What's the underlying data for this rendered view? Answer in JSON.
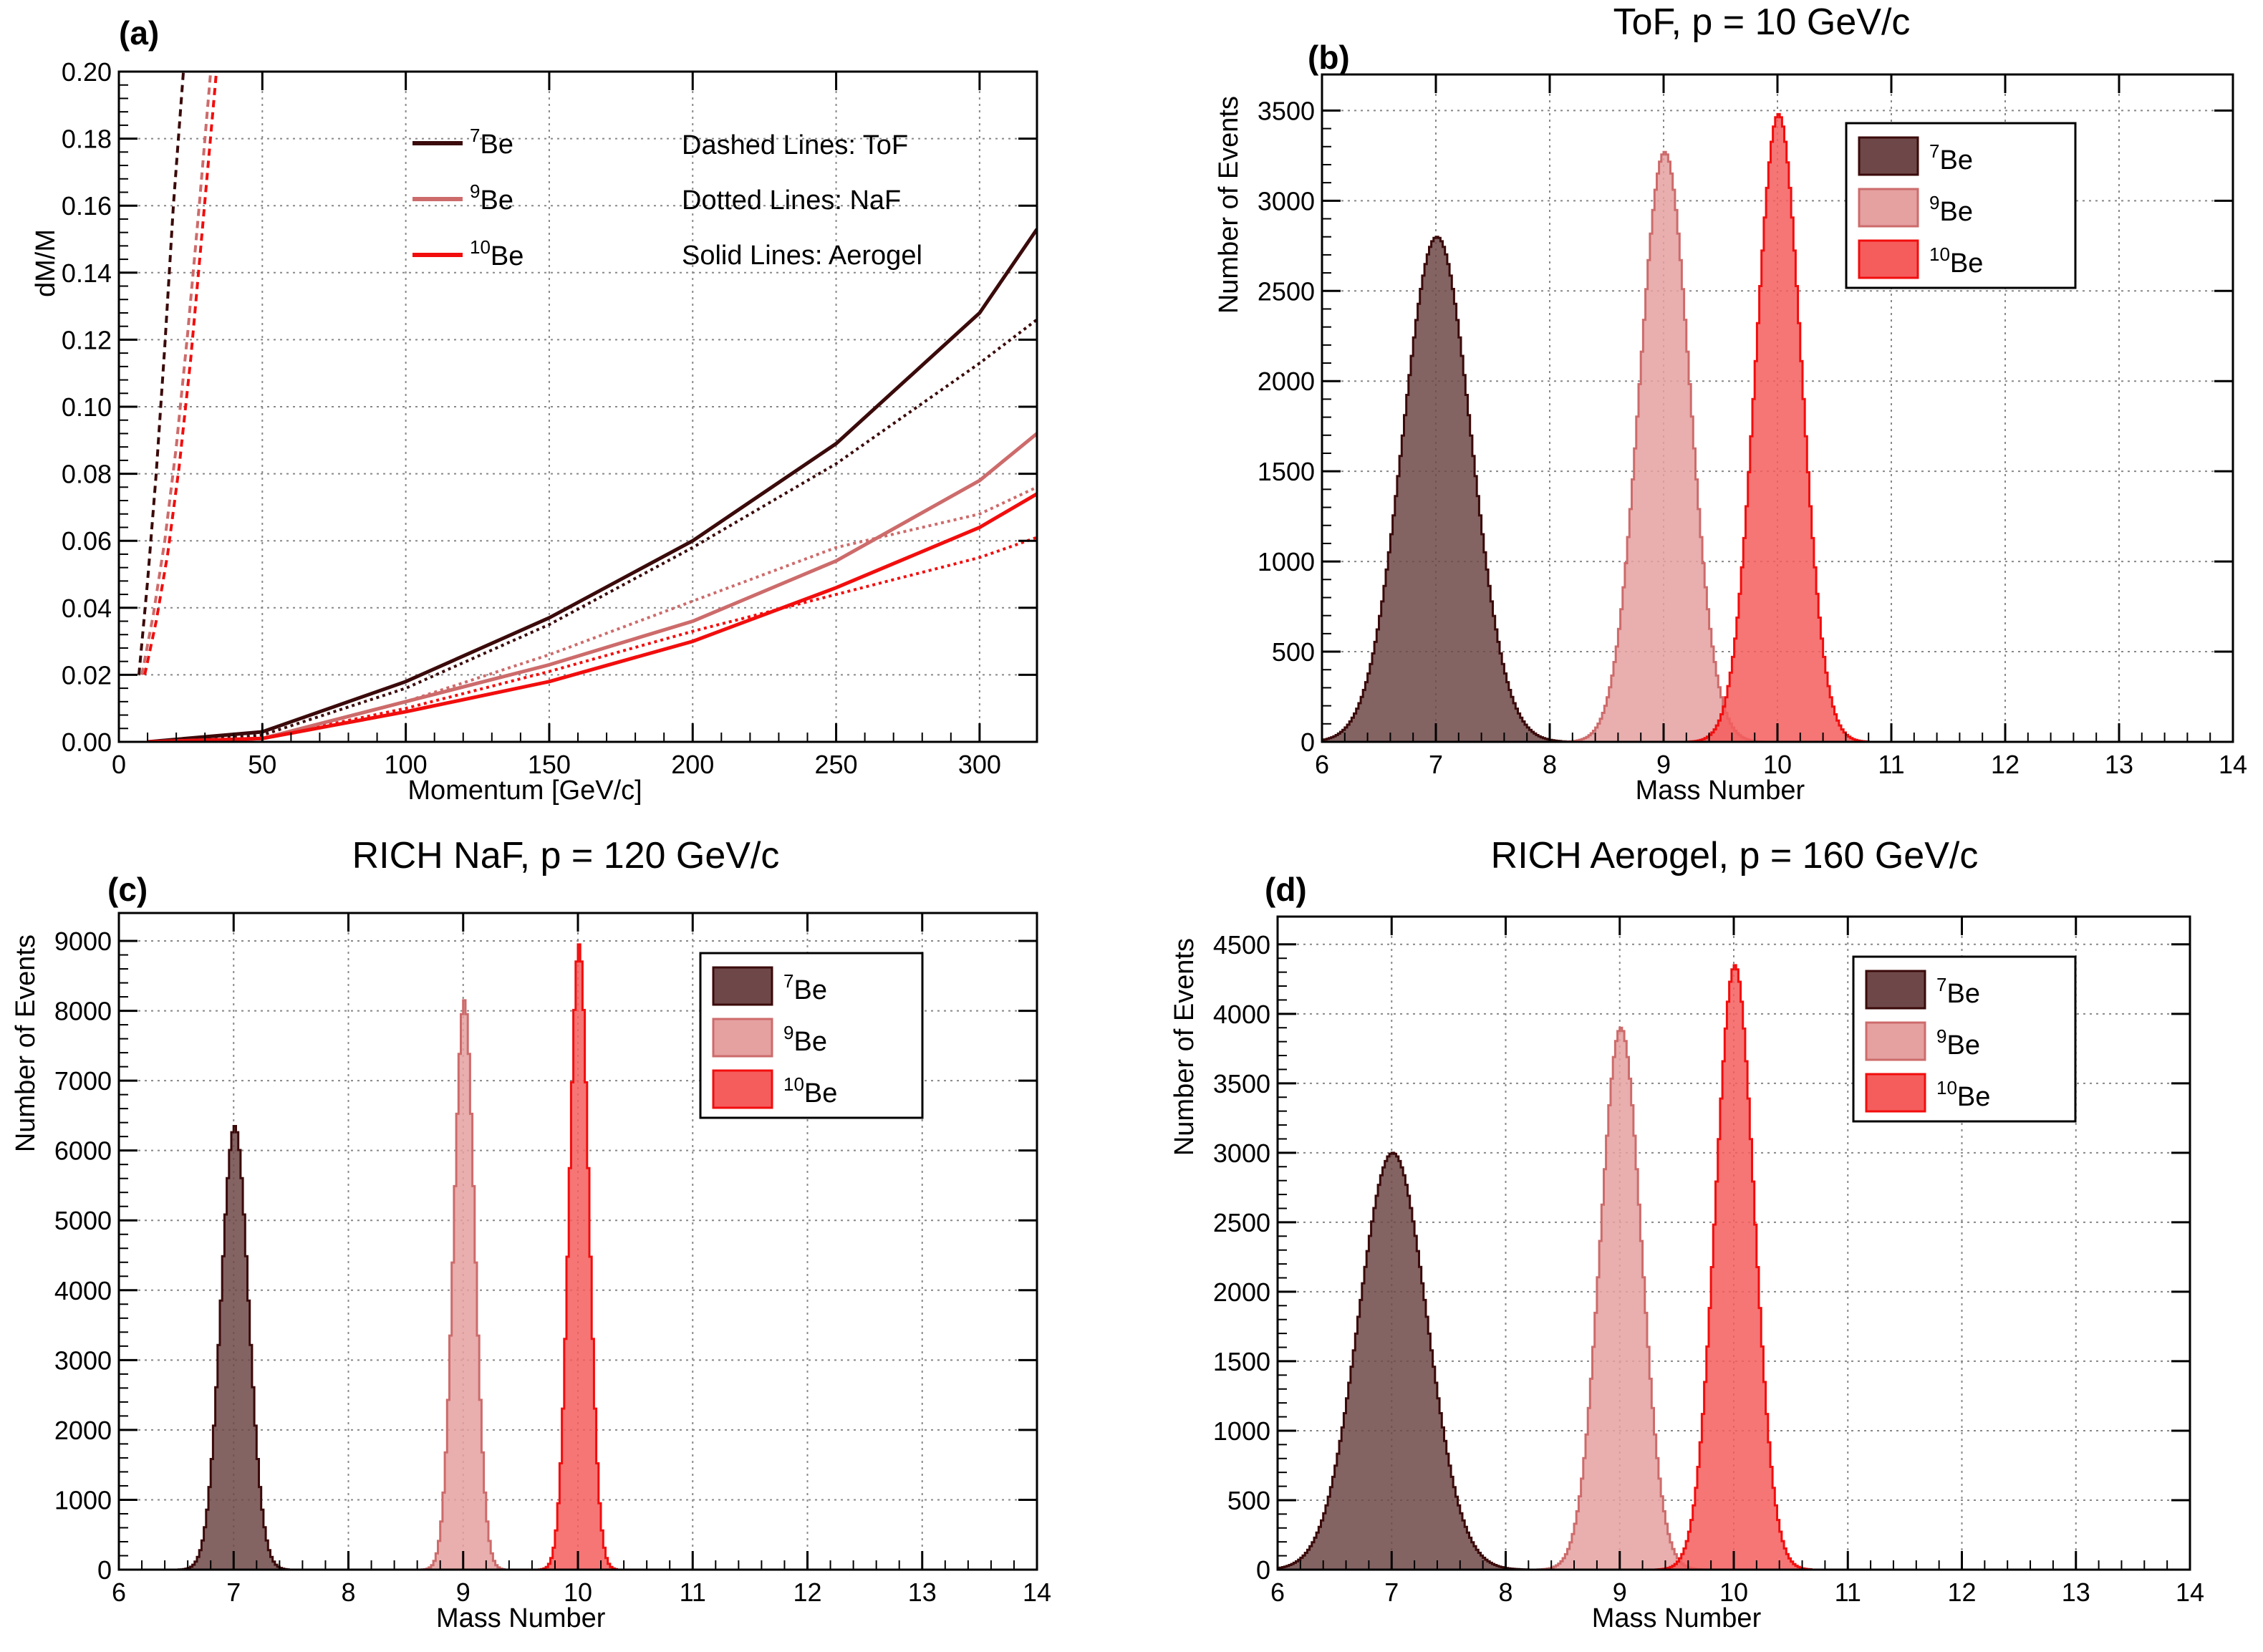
{
  "colors": {
    "be7": "#3b0a0a",
    "be9": "#cd6b6b",
    "be10": "#f20d0d",
    "be7_fill": "#6e4848",
    "be9_fill": "#e5a0a0",
    "be10_fill": "#f55d5d",
    "grid": "#888888"
  },
  "chart_data": [
    {
      "id": "a",
      "type": "line",
      "panel_label": "(a)",
      "title": "",
      "xlabel": "Momentum [GeV/c]",
      "ylabel": "dM/M",
      "xlim": [
        0,
        320
      ],
      "ylim": [
        0,
        0.2
      ],
      "xticks": [
        0,
        50,
        100,
        150,
        200,
        250,
        300
      ],
      "xtick_labels": [
        "0",
        "50",
        "100",
        "150",
        "200",
        "250",
        "300"
      ],
      "yticks": [
        0,
        0.02,
        0.04,
        0.06,
        0.08,
        0.1,
        0.12,
        0.14,
        0.16,
        0.18,
        0.2
      ],
      "ytick_labels": [
        "0.00",
        "0.02",
        "0.04",
        "0.06",
        "0.08",
        "0.10",
        "0.12",
        "0.14",
        "0.16",
        "0.18",
        "0.20"
      ],
      "legend": {
        "position": "top-left",
        "entries": [
          {
            "sup": "7",
            "label": "Be",
            "series": "be7"
          },
          {
            "sup": "9",
            "label": "Be",
            "series": "be9"
          },
          {
            "sup": "10",
            "label": "Be",
            "series": "be10"
          }
        ]
      },
      "notes": [
        "Dashed Lines: ToF",
        "Dotted Lines: NaF",
        "Solid Lines: Aerogel"
      ],
      "series": [
        {
          "name": "7Be ToF",
          "isotope": "be7",
          "detector": "ToF",
          "style": "dashed",
          "x": [
            7,
            10,
            13,
            16,
            19,
            22.5
          ],
          "y": [
            0.02,
            0.048,
            0.08,
            0.118,
            0.16,
            0.2
          ]
        },
        {
          "name": "9Be ToF",
          "isotope": "be9",
          "detector": "ToF",
          "style": "dashed",
          "x": [
            8,
            12,
            16,
            20,
            24,
            28,
            32
          ],
          "y": [
            0.02,
            0.038,
            0.06,
            0.088,
            0.122,
            0.16,
            0.2
          ]
        },
        {
          "name": "10Be ToF",
          "isotope": "be10",
          "detector": "ToF",
          "style": "dashed",
          "x": [
            9,
            13,
            17,
            21,
            25,
            29,
            34
          ],
          "y": [
            0.02,
            0.036,
            0.056,
            0.082,
            0.114,
            0.152,
            0.2
          ]
        },
        {
          "name": "7Be NaF",
          "isotope": "be7",
          "detector": "NaF",
          "style": "dotted",
          "x": [
            20,
            50,
            100,
            150,
            200,
            250,
            300,
            320
          ],
          "y": [
            0,
            0.002,
            0.016,
            0.035,
            0.058,
            0.083,
            0.113,
            0.126
          ]
        },
        {
          "name": "9Be NaF",
          "isotope": "be9",
          "detector": "NaF",
          "style": "dotted",
          "x": [
            20,
            50,
            100,
            150,
            200,
            250,
            300,
            320
          ],
          "y": [
            0,
            0.001,
            0.012,
            0.026,
            0.042,
            0.058,
            0.068,
            0.076
          ]
        },
        {
          "name": "10Be NaF",
          "isotope": "be10",
          "detector": "NaF",
          "style": "dotted",
          "x": [
            20,
            50,
            100,
            150,
            200,
            250,
            300,
            320
          ],
          "y": [
            0,
            0.001,
            0.01,
            0.021,
            0.033,
            0.044,
            0.055,
            0.061
          ]
        },
        {
          "name": "7Be Aerogel",
          "isotope": "be7",
          "detector": "Aerogel",
          "style": "solid",
          "x": [
            10,
            50,
            100,
            150,
            200,
            250,
            300,
            320
          ],
          "y": [
            0,
            0.003,
            0.018,
            0.037,
            0.06,
            0.089,
            0.128,
            0.153
          ]
        },
        {
          "name": "9Be Aerogel",
          "isotope": "be9",
          "detector": "Aerogel",
          "style": "solid",
          "x": [
            10,
            50,
            100,
            150,
            200,
            250,
            300,
            320
          ],
          "y": [
            0,
            0.001,
            0.012,
            0.023,
            0.036,
            0.054,
            0.078,
            0.092
          ]
        },
        {
          "name": "10Be Aerogel",
          "isotope": "be10",
          "detector": "Aerogel",
          "style": "solid",
          "x": [
            10,
            50,
            100,
            150,
            200,
            250,
            300,
            320
          ],
          "y": [
            0,
            0.001,
            0.009,
            0.018,
            0.03,
            0.046,
            0.064,
            0.074
          ]
        }
      ]
    },
    {
      "id": "b",
      "type": "histogram",
      "panel_label": "(b)",
      "title": "ToF, p = 10 GeV/c",
      "xlabel": "Mass Number",
      "ylabel": "Number of Events",
      "xlim": [
        6,
        14
      ],
      "ylim": [
        0,
        3700
      ],
      "xticks": [
        6,
        7,
        8,
        9,
        10,
        11,
        12,
        13,
        14
      ],
      "xtick_labels": [
        "6",
        "7",
        "8",
        "9",
        "10",
        "11",
        "12",
        "13",
        "14"
      ],
      "yticks": [
        0,
        500,
        1000,
        1500,
        2000,
        2500,
        3000,
        3500
      ],
      "ytick_labels": [
        "0",
        "500",
        "1000",
        "1500",
        "2000",
        "2500",
        "3000",
        "3500"
      ],
      "legend": {
        "position": "top-right",
        "entries": [
          {
            "sup": "7",
            "label": "Be",
            "series": "be7"
          },
          {
            "sup": "9",
            "label": "Be",
            "series": "be9"
          },
          {
            "sup": "10",
            "label": "Be",
            "series": "be10"
          }
        ]
      },
      "series": [
        {
          "name": "7Be",
          "isotope": "be7",
          "peak_mass": 7.0,
          "peak_count": 2800,
          "sigma": 0.3
        },
        {
          "name": "9Be",
          "isotope": "be9",
          "peak_mass": 9.0,
          "peak_count": 3270,
          "sigma": 0.22
        },
        {
          "name": "10Be",
          "isotope": "be10",
          "peak_mass": 10.0,
          "peak_count": 3480,
          "sigma": 0.2
        }
      ]
    },
    {
      "id": "c",
      "type": "histogram",
      "panel_label": "(c)",
      "title": "RICH NaF, p = 120 GeV/c",
      "xlabel": "Mass Number",
      "ylabel": "Number of Events",
      "xlim": [
        6,
        14
      ],
      "ylim": [
        0,
        9400
      ],
      "xticks": [
        6,
        7,
        8,
        9,
        10,
        11,
        12,
        13,
        14
      ],
      "xtick_labels": [
        "6",
        "7",
        "8",
        "9",
        "10",
        "11",
        "12",
        "13",
        "14"
      ],
      "yticks": [
        0,
        1000,
        2000,
        3000,
        4000,
        5000,
        6000,
        7000,
        8000,
        9000
      ],
      "ytick_labels": [
        "0",
        "1000",
        "2000",
        "3000",
        "4000",
        "5000",
        "6000",
        "7000",
        "8000",
        "9000"
      ],
      "legend": {
        "position": "top-right",
        "entries": [
          {
            "sup": "7",
            "label": "Be",
            "series": "be7"
          },
          {
            "sup": "9",
            "label": "Be",
            "series": "be9"
          },
          {
            "sup": "10",
            "label": "Be",
            "series": "be10"
          }
        ]
      },
      "series": [
        {
          "name": "7Be",
          "isotope": "be7",
          "peak_mass": 7.0,
          "peak_count": 6350,
          "sigma": 0.12
        },
        {
          "name": "9Be",
          "isotope": "be9",
          "peak_mass": 9.0,
          "peak_count": 8150,
          "sigma": 0.09
        },
        {
          "name": "10Be",
          "isotope": "be10",
          "peak_mass": 10.0,
          "peak_count": 8950,
          "sigma": 0.085
        }
      ]
    },
    {
      "id": "d",
      "type": "histogram",
      "panel_label": "(d)",
      "title": "RICH Aerogel, p = 160 GeV/c",
      "xlabel": "Mass Number",
      "ylabel": "Number of Events",
      "xlim": [
        6,
        14
      ],
      "ylim": [
        0,
        4700
      ],
      "xticks": [
        6,
        7,
        8,
        9,
        10,
        11,
        12,
        13,
        14
      ],
      "xtick_labels": [
        "6",
        "7",
        "8",
        "9",
        "10",
        "11",
        "12",
        "13",
        "14"
      ],
      "yticks": [
        0,
        500,
        1000,
        1500,
        2000,
        2500,
        3000,
        3500,
        4000,
        4500
      ],
      "ytick_labels": [
        "0",
        "500",
        "1000",
        "1500",
        "2000",
        "2500",
        "3000",
        "3500",
        "4000",
        "4500"
      ],
      "legend": {
        "position": "top-right",
        "entries": [
          {
            "sup": "7",
            "label": "Be",
            "series": "be7"
          },
          {
            "sup": "9",
            "label": "Be",
            "series": "be9"
          },
          {
            "sup": "10",
            "label": "Be",
            "series": "be10"
          }
        ]
      },
      "series": [
        {
          "name": "7Be",
          "isotope": "be7",
          "peak_mass": 7.0,
          "peak_count": 3000,
          "sigma": 0.3
        },
        {
          "name": "9Be",
          "isotope": "be9",
          "peak_mass": 9.0,
          "peak_count": 3900,
          "sigma": 0.18
        },
        {
          "name": "10Be",
          "isotope": "be10",
          "peak_mass": 10.0,
          "peak_count": 4350,
          "sigma": 0.17
        }
      ]
    }
  ]
}
